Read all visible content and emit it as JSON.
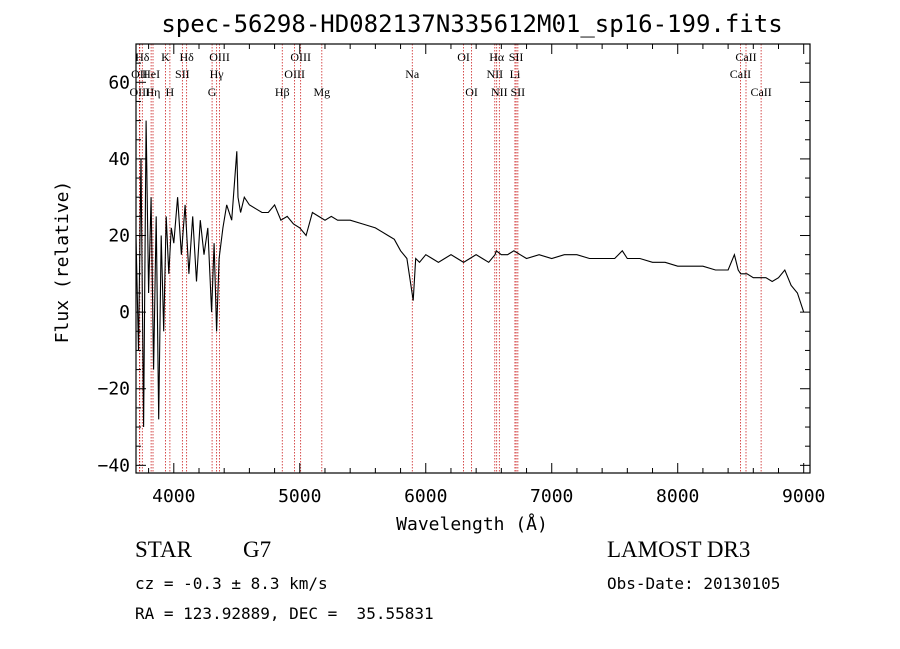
{
  "chart_data": {
    "type": "line",
    "title": "spec-56298-HD082137N335612M01_sp16-199.fits",
    "xlabel": "Wavelength (Å)",
    "ylabel": "Flux (relative)",
    "xlim": [
      3700,
      9050
    ],
    "ylim": [
      -42,
      70
    ],
    "xticks": [
      4000,
      5000,
      6000,
      7000,
      8000,
      9000
    ],
    "yticks": [
      -40,
      -20,
      0,
      20,
      40,
      60
    ],
    "series": [
      {
        "name": "flux",
        "x": [
          3700,
          3720,
          3740,
          3760,
          3780,
          3800,
          3820,
          3840,
          3860,
          3880,
          3900,
          3920,
          3940,
          3960,
          3980,
          4000,
          4030,
          4060,
          4090,
          4120,
          4150,
          4180,
          4210,
          4240,
          4270,
          4300,
          4320,
          4340,
          4360,
          4390,
          4420,
          4460,
          4500,
          4510,
          4530,
          4560,
          4600,
          4650,
          4700,
          4750,
          4800,
          4850,
          4900,
          4950,
          5000,
          5050,
          5100,
          5150,
          5200,
          5250,
          5300,
          5400,
          5500,
          5600,
          5700,
          5750,
          5800,
          5850,
          5900,
          5920,
          5950,
          6000,
          6050,
          6100,
          6150,
          6200,
          6250,
          6300,
          6350,
          6400,
          6450,
          6500,
          6550,
          6560,
          6600,
          6650,
          6700,
          6750,
          6800,
          6900,
          7000,
          7100,
          7200,
          7300,
          7400,
          7500,
          7560,
          7600,
          7700,
          7800,
          7900,
          8000,
          8100,
          8200,
          8300,
          8400,
          8450,
          8480,
          8500,
          8550,
          8600,
          8650,
          8700,
          8750,
          8800,
          8850,
          8900,
          8950,
          9000
        ],
        "y": [
          20,
          -10,
          40,
          -30,
          50,
          5,
          30,
          -15,
          25,
          -28,
          20,
          -5,
          25,
          10,
          22,
          18,
          30,
          15,
          28,
          10,
          25,
          8,
          24,
          15,
          22,
          0,
          18,
          -5,
          14,
          22,
          28,
          24,
          42,
          30,
          26,
          30,
          28,
          27,
          26,
          26,
          28,
          24,
          25,
          23,
          22,
          20,
          26,
          25,
          24,
          25,
          24,
          24,
          23,
          22,
          20,
          19,
          16,
          14,
          3,
          14,
          13,
          15,
          14,
          13,
          14,
          15,
          14,
          13,
          14,
          15,
          14,
          13,
          15,
          16,
          15,
          15,
          16,
          15,
          14,
          15,
          14,
          15,
          15,
          14,
          14,
          14,
          16,
          14,
          14,
          13,
          13,
          12,
          12,
          12,
          11,
          11,
          15,
          11,
          10,
          10,
          9,
          9,
          9,
          8,
          9,
          11,
          7,
          5,
          0
        ]
      }
    ],
    "annotations": [
      {
        "label": "Hδ",
        "wl": 3750,
        "row": 1
      },
      {
        "label": "OII",
        "wl": 3727,
        "row": 2
      },
      {
        "label": "OIII",
        "wl": 3730,
        "row": 3
      },
      {
        "label": "HeI",
        "wl": 3820,
        "row": 2
      },
      {
        "label": "Hη",
        "wl": 3835,
        "row": 3
      },
      {
        "label": "K",
        "wl": 3934,
        "row": 1
      },
      {
        "label": "SII",
        "wl": 4068,
        "row": 2
      },
      {
        "label": "H",
        "wl": 3969,
        "row": 3
      },
      {
        "label": "Hδ",
        "wl": 4102,
        "row": 1
      },
      {
        "label": "OIII",
        "wl": 4363,
        "row": 1
      },
      {
        "label": "Hγ",
        "wl": 4340,
        "row": 2
      },
      {
        "label": "G",
        "wl": 4304,
        "row": 3
      },
      {
        "label": "Hβ",
        "wl": 4861,
        "row": 3
      },
      {
        "label": "OIII",
        "wl": 5007,
        "row": 1
      },
      {
        "label": "OIII",
        "wl": 4959,
        "row": 2
      },
      {
        "label": "Mg",
        "wl": 5175,
        "row": 3
      },
      {
        "label": "Na",
        "wl": 5893,
        "row": 2
      },
      {
        "label": "OI",
        "wl": 6300,
        "row": 1
      },
      {
        "label": "OI",
        "wl": 6364,
        "row": 3
      },
      {
        "label": "Hα",
        "wl": 6563,
        "row": 1
      },
      {
        "label": "NII",
        "wl": 6548,
        "row": 2
      },
      {
        "label": "NII",
        "wl": 6584,
        "row": 3
      },
      {
        "label": "SII",
        "wl": 6717,
        "row": 1
      },
      {
        "label": "Li",
        "wl": 6708,
        "row": 2
      },
      {
        "label": "SII",
        "wl": 6731,
        "row": 3
      },
      {
        "label": "CaII",
        "wl": 8542,
        "row": 1
      },
      {
        "label": "CaII",
        "wl": 8498,
        "row": 2
      },
      {
        "label": "CaII",
        "wl": 8662,
        "row": 3
      }
    ]
  },
  "info": {
    "class_label": "STAR",
    "subclass": "G7",
    "redshift_text": "cz = -0.3 ± 8.3 km/s",
    "coords_text": "RA = 123.92889, DEC =  35.55831",
    "survey": "LAMOST DR3",
    "obs_date": "Obs-Date: 20130105"
  },
  "colors": {
    "line": "#000000",
    "marker": "#cc2222",
    "axis": "#000000"
  }
}
